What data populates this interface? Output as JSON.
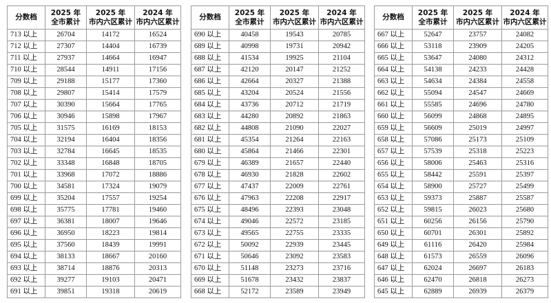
{
  "tables": [
    {
      "header": [
        [
          "分数档"
        ],
        [
          "2025 年",
          "全市累计"
        ],
        [
          "2025 年",
          "市内六区累计"
        ],
        [
          "2024 年",
          "市内六区累计"
        ]
      ],
      "rows": [
        [
          "713 以上",
          26704,
          14172,
          16524
        ],
        [
          "712 以上",
          27307,
          14404,
          16739
        ],
        [
          "711 以上",
          27937,
          14664,
          16947
        ],
        [
          "710 以上",
          28544,
          14911,
          17156
        ],
        [
          "709 以上",
          29188,
          15177,
          17360
        ],
        [
          "708 以上",
          29807,
          15414,
          17579
        ],
        [
          "707 以上",
          30390,
          15664,
          17765
        ],
        [
          "706 以上",
          30946,
          15898,
          17967
        ],
        [
          "705 以上",
          31575,
          16169,
          18153
        ],
        [
          "704 以上",
          32194,
          16404,
          18356
        ],
        [
          "703 以上",
          32784,
          16645,
          18535
        ],
        [
          "702 以上",
          33348,
          16848,
          18705
        ],
        [
          "701 以上",
          33968,
          17072,
          18886
        ],
        [
          "700 以上",
          34581,
          17324,
          19079
        ],
        [
          "699 以上",
          35204,
          17557,
          19254
        ],
        [
          "698 以上",
          35775,
          17781,
          19460
        ],
        [
          "697 以上",
          36381,
          18007,
          19646
        ],
        [
          "696 以上",
          36950,
          18223,
          19814
        ],
        [
          "695 以上",
          37560,
          18439,
          19991
        ],
        [
          "694 以上",
          38133,
          18667,
          20160
        ],
        [
          "693 以上",
          38714,
          18876,
          20313
        ],
        [
          "692 以上",
          39277,
          19103,
          20471
        ],
        [
          "691 以上",
          39851,
          19318,
          20619
        ]
      ]
    },
    {
      "header": [
        [
          "分数档"
        ],
        [
          "2025 年",
          "全市累计"
        ],
        [
          "2025 年",
          "市内六区累计"
        ],
        [
          "2024 年",
          "市内六区累计"
        ]
      ],
      "rows": [
        [
          "690 以上",
          40458,
          19543,
          20785
        ],
        [
          "689 以上",
          40998,
          19731,
          20942
        ],
        [
          "688 以上",
          41534,
          19925,
          21104
        ],
        [
          "687 以上",
          42120,
          20147,
          21252
        ],
        [
          "686 以上",
          42664,
          20327,
          21388
        ],
        [
          "685 以上",
          43204,
          20524,
          21556
        ],
        [
          "684 以上",
          43736,
          20712,
          21719
        ],
        [
          "683 以上",
          44280,
          20892,
          21863
        ],
        [
          "682 以上",
          44808,
          21090,
          22027
        ],
        [
          "681 以上",
          45354,
          21264,
          22163
        ],
        [
          "680 以上",
          45864,
          21466,
          22301
        ],
        [
          "679 以上",
          46389,
          21657,
          22440
        ],
        [
          "678 以上",
          46930,
          21828,
          22602
        ],
        [
          "677 以上",
          47437,
          22009,
          22761
        ],
        [
          "676 以上",
          47963,
          22208,
          22917
        ],
        [
          "675 以上",
          48496,
          22393,
          23048
        ],
        [
          "674 以上",
          49046,
          22572,
          23185
        ],
        [
          "673 以上",
          49565,
          22755,
          23335
        ],
        [
          "672 以上",
          50092,
          22939,
          23445
        ],
        [
          "671 以上",
          50646,
          23092,
          23583
        ],
        [
          "670 以上",
          51148,
          23273,
          23716
        ],
        [
          "669 以上",
          51678,
          23432,
          23837
        ],
        [
          "668 以上",
          52172,
          23589,
          23949
        ]
      ]
    },
    {
      "header": [
        [
          "分数档"
        ],
        [
          "2025 年",
          "全市累计"
        ],
        [
          "2025 年",
          "市内六区累计"
        ],
        [
          "2024 年",
          "市内六区累计"
        ]
      ],
      "rows": [
        [
          "667 以上",
          52647,
          23757,
          24082
        ],
        [
          "666 以上",
          53118,
          23909,
          24205
        ],
        [
          "665 以上",
          53647,
          24080,
          24312
        ],
        [
          "664 以上",
          54138,
          24233,
          24428
        ],
        [
          "663 以上",
          54634,
          24384,
          24558
        ],
        [
          "662 以上",
          55094,
          24547,
          24669
        ],
        [
          "661 以上",
          55585,
          24696,
          24780
        ],
        [
          "660 以上",
          56099,
          24868,
          24895
        ],
        [
          "659 以上",
          56609,
          25019,
          24997
        ],
        [
          "658 以上",
          57086,
          25173,
          25109
        ],
        [
          "657 以上",
          57539,
          25318,
          25223
        ],
        [
          "656 以上",
          58006,
          25463,
          25316
        ],
        [
          "655 以上",
          58442,
          25591,
          25397
        ],
        [
          "654 以上",
          58900,
          25727,
          25499
        ],
        [
          "653 以上",
          59373,
          25887,
          25587
        ],
        [
          "652 以上",
          59815,
          26023,
          25680
        ],
        [
          "651 以上",
          60256,
          26156,
          25790
        ],
        [
          "650 以上",
          60701,
          26301,
          25892
        ],
        [
          "649 以上",
          61116,
          26420,
          25984
        ],
        [
          "648 以上",
          61573,
          26559,
          26096
        ],
        [
          "647 以上",
          62024,
          26697,
          26183
        ],
        [
          "646 以上",
          62470,
          26818,
          26273
        ],
        [
          "645 以上",
          62889,
          26939,
          26379
        ]
      ]
    }
  ]
}
